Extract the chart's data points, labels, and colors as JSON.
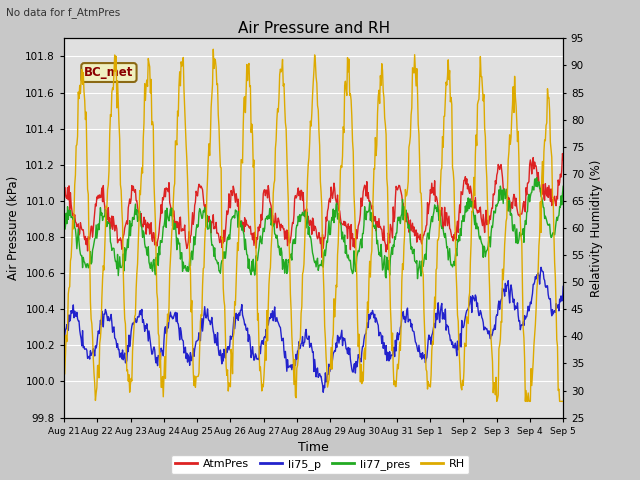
{
  "title": "Air Pressure and RH",
  "top_left_text": "No data for f_AtmPres",
  "annotation_text": "BC_met",
  "xlabel": "Time",
  "ylabel_left": "Air Pressure (kPa)",
  "ylabel_right": "Relativity Humidity (%)",
  "ylim_left": [
    99.8,
    101.9
  ],
  "ylim_right": [
    25,
    95
  ],
  "yticks_left": [
    99.8,
    100.0,
    100.2,
    100.4,
    100.6,
    100.8,
    101.0,
    101.2,
    101.4,
    101.6,
    101.8
  ],
  "yticks_right": [
    25,
    30,
    35,
    40,
    45,
    50,
    55,
    60,
    65,
    70,
    75,
    80,
    85,
    90,
    95
  ],
  "colors": {
    "AtmPres": "#dd2222",
    "li75_p": "#2222cc",
    "li77_pres": "#22aa22",
    "RH": "#ddaa00"
  },
  "legend_labels": [
    "AtmPres",
    "li75_p",
    "li77_pres",
    "RH"
  ],
  "n_points": 700,
  "xticklabels": [
    "Aug 21",
    "Aug 22",
    "Aug 23",
    "Aug 24",
    "Aug 25",
    "Aug 26",
    "Aug 27",
    "Aug 28",
    "Aug 29",
    "Aug 30",
    "Aug 31",
    "Sep 1",
    "Sep 2",
    "Sep 3",
    "Sep 4",
    "Sep 5"
  ]
}
